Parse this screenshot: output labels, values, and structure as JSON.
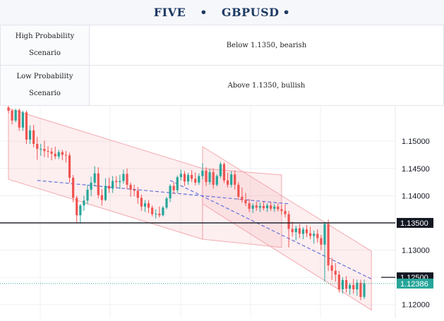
{
  "header": {
    "left": "FIVE",
    "dot": "•",
    "right": "GBPUSD",
    "trail": "•"
  },
  "scenarios": [
    {
      "label": "High Probability Scenario",
      "value": "Below 1.1350, bearish"
    },
    {
      "label": "Low  Probability Scenario",
      "value": "Above 1.1350, bullish"
    }
  ],
  "chart_data": {
    "type": "candlestick",
    "y_ticks": [
      "1.15000",
      "1.14500",
      "1.14000",
      "1.13500",
      "1.13000",
      "1.12500",
      "1.12000"
    ],
    "ylim": [
      1.1175,
      1.1565
    ],
    "grid": true,
    "levels": [
      {
        "label": "1.13500",
        "value": 1.135,
        "color": "#131722"
      },
      {
        "label": "1.12500",
        "value": 1.125,
        "color": "#131722"
      }
    ],
    "last_price": {
      "label": "1.12386",
      "value": 1.12386,
      "color": "#26a69a"
    },
    "candles": [
      [
        1.1562,
        1.1566,
        1.1551,
        1.1556
      ],
      [
        1.1556,
        1.1559,
        1.1531,
        1.1538
      ],
      [
        1.1538,
        1.156,
        1.1535,
        1.1557
      ],
      [
        1.1557,
        1.156,
        1.1519,
        1.1525
      ],
      [
        1.1525,
        1.1556,
        1.1519,
        1.1553
      ],
      [
        1.1553,
        1.1556,
        1.1495,
        1.1503
      ],
      [
        1.1503,
        1.1529,
        1.1495,
        1.152
      ],
      [
        1.152,
        1.153,
        1.1489,
        1.1495
      ],
      [
        1.1495,
        1.1508,
        1.1466,
        1.1486
      ],
      [
        1.1486,
        1.1495,
        1.1473,
        1.1486
      ],
      [
        1.1486,
        1.1501,
        1.1471,
        1.1482
      ],
      [
        1.1482,
        1.1491,
        1.147,
        1.1481
      ],
      [
        1.1481,
        1.1488,
        1.1465,
        1.1477
      ],
      [
        1.1477,
        1.149,
        1.1467,
        1.1472
      ],
      [
        1.1472,
        1.1484,
        1.1467,
        1.148
      ],
      [
        1.148,
        1.1484,
        1.1465,
        1.1475
      ],
      [
        1.1475,
        1.1482,
        1.1461,
        1.1474
      ],
      [
        1.1474,
        1.1479,
        1.1424,
        1.1433
      ],
      [
        1.1433,
        1.1438,
        1.1388,
        1.1396
      ],
      [
        1.1396,
        1.14,
        1.1349,
        1.1364
      ],
      [
        1.1364,
        1.1385,
        1.1349,
        1.1382
      ],
      [
        1.1382,
        1.14,
        1.1372,
        1.1391
      ],
      [
        1.1391,
        1.142,
        1.1384,
        1.1411
      ],
      [
        1.1411,
        1.1435,
        1.1399,
        1.1424
      ],
      [
        1.1424,
        1.1454,
        1.1418,
        1.1441
      ],
      [
        1.1441,
        1.1452,
        1.1395,
        1.1401
      ],
      [
        1.1401,
        1.1412,
        1.1382,
        1.1392
      ],
      [
        1.1392,
        1.1432,
        1.139,
        1.1418
      ],
      [
        1.1418,
        1.1433,
        1.1405,
        1.1413
      ],
      [
        1.1413,
        1.1436,
        1.1405,
        1.1427
      ],
      [
        1.1427,
        1.1436,
        1.1414,
        1.1425
      ],
      [
        1.1425,
        1.1438,
        1.1412,
        1.1427
      ],
      [
        1.1427,
        1.1448,
        1.1422,
        1.144
      ],
      [
        1.144,
        1.145,
        1.1412,
        1.142
      ],
      [
        1.142,
        1.1424,
        1.1398,
        1.1411
      ],
      [
        1.1411,
        1.142,
        1.1399,
        1.1409
      ],
      [
        1.1409,
        1.1416,
        1.1385,
        1.1396
      ],
      [
        1.1396,
        1.1402,
        1.1372,
        1.138
      ],
      [
        1.138,
        1.1392,
        1.137,
        1.1386
      ],
      [
        1.1386,
        1.1392,
        1.1368,
        1.1378
      ],
      [
        1.1378,
        1.1382,
        1.1362,
        1.1366
      ],
      [
        1.1366,
        1.1375,
        1.1358,
        1.1367
      ],
      [
        1.1367,
        1.138,
        1.136,
        1.1364
      ],
      [
        1.1364,
        1.1381,
        1.1362,
        1.1378
      ],
      [
        1.1378,
        1.1398,
        1.1375,
        1.1395
      ],
      [
        1.1395,
        1.1421,
        1.1388,
        1.1418
      ],
      [
        1.1418,
        1.1425,
        1.1403,
        1.141
      ],
      [
        1.141,
        1.1437,
        1.1405,
        1.1434
      ],
      [
        1.1434,
        1.1448,
        1.1428,
        1.144
      ],
      [
        1.144,
        1.1445,
        1.1418,
        1.1426
      ],
      [
        1.1426,
        1.1442,
        1.142,
        1.1438
      ],
      [
        1.1438,
        1.1447,
        1.1425,
        1.1431
      ],
      [
        1.1431,
        1.1443,
        1.1419,
        1.1424
      ],
      [
        1.1424,
        1.1441,
        1.142,
        1.1436
      ],
      [
        1.1436,
        1.146,
        1.143,
        1.1446
      ],
      [
        1.1446,
        1.1452,
        1.1418,
        1.1425
      ],
      [
        1.1425,
        1.1449,
        1.142,
        1.1443
      ],
      [
        1.1443,
        1.145,
        1.1413,
        1.142
      ],
      [
        1.142,
        1.1439,
        1.1417,
        1.1436
      ],
      [
        1.1436,
        1.1462,
        1.1432,
        1.1458
      ],
      [
        1.1458,
        1.1461,
        1.1423,
        1.1428
      ],
      [
        1.1428,
        1.1442,
        1.1415,
        1.142
      ],
      [
        1.142,
        1.1445,
        1.1415,
        1.1439
      ],
      [
        1.1439,
        1.1446,
        1.1411,
        1.142
      ],
      [
        1.142,
        1.1425,
        1.1392,
        1.1398
      ],
      [
        1.1398,
        1.1415,
        1.1387,
        1.1392
      ],
      [
        1.1392,
        1.1405,
        1.1381,
        1.1386
      ],
      [
        1.1386,
        1.1394,
        1.137,
        1.1376
      ],
      [
        1.1376,
        1.1386,
        1.1368,
        1.1382
      ],
      [
        1.1382,
        1.1389,
        1.1372,
        1.1378
      ],
      [
        1.1378,
        1.1387,
        1.137,
        1.1381
      ],
      [
        1.1381,
        1.1389,
        1.1373,
        1.1377
      ],
      [
        1.1377,
        1.1386,
        1.137,
        1.1382
      ],
      [
        1.1382,
        1.1388,
        1.1372,
        1.1376
      ],
      [
        1.1376,
        1.1385,
        1.137,
        1.138
      ],
      [
        1.138,
        1.1386,
        1.1371,
        1.1375
      ],
      [
        1.1375,
        1.1383,
        1.1365,
        1.1372
      ],
      [
        1.1372,
        1.1384,
        1.136,
        1.1366
      ],
      [
        1.1366,
        1.1372,
        1.1305,
        1.1339
      ],
      [
        1.1339,
        1.1352,
        1.1325,
        1.1333
      ],
      [
        1.1333,
        1.1345,
        1.1318,
        1.134
      ],
      [
        1.134,
        1.1348,
        1.1322,
        1.133
      ],
      [
        1.133,
        1.1342,
        1.132,
        1.1338
      ],
      [
        1.1338,
        1.1346,
        1.1324,
        1.1331
      ],
      [
        1.1331,
        1.1343,
        1.132,
        1.1326
      ],
      [
        1.1326,
        1.1336,
        1.1312,
        1.133
      ],
      [
        1.133,
        1.1338,
        1.1314,
        1.1322
      ],
      [
        1.1322,
        1.1328,
        1.13,
        1.131
      ],
      [
        1.131,
        1.1352,
        1.1242,
        1.1348
      ],
      [
        1.1348,
        1.1356,
        1.1262,
        1.1272
      ],
      [
        1.1272,
        1.1286,
        1.1245,
        1.1262
      ],
      [
        1.1262,
        1.1276,
        1.1242,
        1.1255
      ],
      [
        1.1255,
        1.1262,
        1.1222,
        1.1228
      ],
      [
        1.1228,
        1.125,
        1.122,
        1.1245
      ],
      [
        1.1245,
        1.1252,
        1.1222,
        1.1229
      ],
      [
        1.1229,
        1.124,
        1.1218,
        1.1236
      ],
      [
        1.1236,
        1.1247,
        1.122,
        1.1228
      ],
      [
        1.1228,
        1.1246,
        1.1216,
        1.124
      ],
      [
        1.124,
        1.1246,
        1.1208,
        1.1214
      ],
      [
        1.1214,
        1.1246,
        1.121,
        1.1239
      ]
    ]
  }
}
